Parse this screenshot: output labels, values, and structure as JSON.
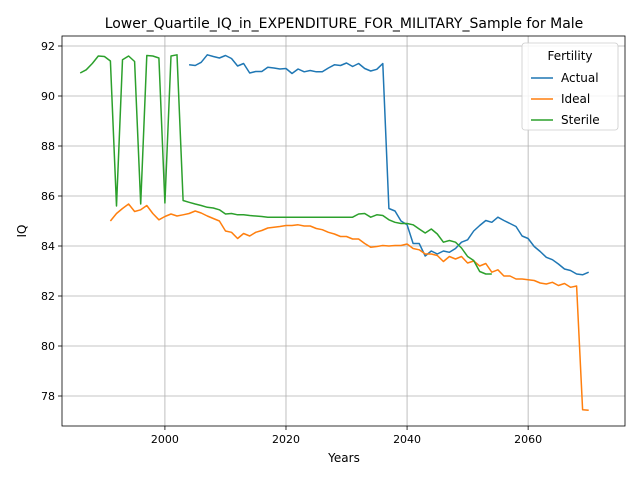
{
  "chart_data": {
    "type": "line",
    "title": "Lower_Quartile_IQ_in_EXPENDITURE_FOR_MILITARY_Sample for Male",
    "xlabel": "Years",
    "ylabel": "IQ",
    "xlim": [
      1983,
      2076
    ],
    "ylim": [
      76.8,
      92.4
    ],
    "xticks": [
      2000,
      2020,
      2040,
      2060
    ],
    "yticks": [
      78,
      80,
      82,
      84,
      86,
      88,
      90,
      92
    ],
    "grid": true,
    "legend": {
      "title": "Fertility",
      "position": "top-right"
    },
    "series": [
      {
        "name": "Actual",
        "color": "#1f77b4",
        "points": [
          [
            2004,
            91.25
          ],
          [
            2005,
            91.22
          ],
          [
            2006,
            91.35
          ],
          [
            2007,
            91.65
          ],
          [
            2008,
            91.58
          ],
          [
            2009,
            91.52
          ],
          [
            2010,
            91.62
          ],
          [
            2011,
            91.5
          ],
          [
            2012,
            91.2
          ],
          [
            2013,
            91.3
          ],
          [
            2014,
            90.92
          ],
          [
            2015,
            90.98
          ],
          [
            2016,
            90.98
          ],
          [
            2017,
            91.15
          ],
          [
            2018,
            91.12
          ],
          [
            2019,
            91.08
          ],
          [
            2020,
            91.1
          ],
          [
            2021,
            90.9
          ],
          [
            2022,
            91.08
          ],
          [
            2023,
            90.97
          ],
          [
            2024,
            91.02
          ],
          [
            2025,
            90.97
          ],
          [
            2026,
            90.97
          ],
          [
            2027,
            91.12
          ],
          [
            2028,
            91.25
          ],
          [
            2029,
            91.22
          ],
          [
            2030,
            91.32
          ],
          [
            2031,
            91.18
          ],
          [
            2032,
            91.3
          ],
          [
            2033,
            91.1
          ],
          [
            2034,
            91.0
          ],
          [
            2035,
            91.07
          ],
          [
            2036,
            91.3
          ],
          [
            2037,
            85.5
          ],
          [
            2038,
            85.4
          ],
          [
            2039,
            85.0
          ],
          [
            2040,
            84.85
          ],
          [
            2041,
            84.1
          ],
          [
            2042,
            84.1
          ],
          [
            2043,
            83.6
          ],
          [
            2044,
            83.8
          ],
          [
            2045,
            83.68
          ],
          [
            2046,
            83.8
          ],
          [
            2047,
            83.75
          ],
          [
            2048,
            83.9
          ],
          [
            2049,
            84.15
          ],
          [
            2050,
            84.25
          ],
          [
            2051,
            84.6
          ],
          [
            2052,
            84.82
          ],
          [
            2053,
            85.02
          ],
          [
            2054,
            84.95
          ],
          [
            2055,
            85.15
          ],
          [
            2056,
            85.02
          ],
          [
            2057,
            84.9
          ],
          [
            2058,
            84.78
          ],
          [
            2059,
            84.4
          ],
          [
            2060,
            84.3
          ],
          [
            2061,
            83.98
          ],
          [
            2062,
            83.78
          ],
          [
            2063,
            83.55
          ],
          [
            2064,
            83.45
          ],
          [
            2065,
            83.28
          ],
          [
            2066,
            83.08
          ],
          [
            2067,
            83.02
          ],
          [
            2068,
            82.88
          ],
          [
            2069,
            82.85
          ],
          [
            2070,
            82.95
          ]
        ]
      },
      {
        "name": "Ideal",
        "color": "#ff7f0e",
        "points": [
          [
            1991,
            85.0
          ],
          [
            1992,
            85.3
          ],
          [
            1993,
            85.5
          ],
          [
            1994,
            85.68
          ],
          [
            1995,
            85.38
          ],
          [
            1996,
            85.45
          ],
          [
            1997,
            85.62
          ],
          [
            1998,
            85.3
          ],
          [
            1999,
            85.05
          ],
          [
            2000,
            85.18
          ],
          [
            2001,
            85.28
          ],
          [
            2002,
            85.2
          ],
          [
            2003,
            85.25
          ],
          [
            2004,
            85.3
          ],
          [
            2005,
            85.4
          ],
          [
            2006,
            85.32
          ],
          [
            2007,
            85.2
          ],
          [
            2008,
            85.1
          ],
          [
            2009,
            85.0
          ],
          [
            2010,
            84.6
          ],
          [
            2011,
            84.55
          ],
          [
            2012,
            84.3
          ],
          [
            2013,
            84.5
          ],
          [
            2014,
            84.4
          ],
          [
            2015,
            84.55
          ],
          [
            2016,
            84.62
          ],
          [
            2017,
            84.72
          ],
          [
            2018,
            84.75
          ],
          [
            2019,
            84.78
          ],
          [
            2020,
            84.82
          ],
          [
            2021,
            84.82
          ],
          [
            2022,
            84.85
          ],
          [
            2023,
            84.8
          ],
          [
            2024,
            84.8
          ],
          [
            2025,
            84.7
          ],
          [
            2026,
            84.65
          ],
          [
            2027,
            84.55
          ],
          [
            2028,
            84.48
          ],
          [
            2029,
            84.38
          ],
          [
            2030,
            84.38
          ],
          [
            2031,
            84.28
          ],
          [
            2032,
            84.28
          ],
          [
            2033,
            84.1
          ],
          [
            2034,
            83.95
          ],
          [
            2035,
            83.98
          ],
          [
            2036,
            84.02
          ],
          [
            2037,
            84.0
          ],
          [
            2038,
            84.02
          ],
          [
            2039,
            84.02
          ],
          [
            2040,
            84.08
          ],
          [
            2041,
            83.9
          ],
          [
            2042,
            83.85
          ],
          [
            2043,
            83.68
          ],
          [
            2044,
            83.68
          ],
          [
            2045,
            83.62
          ],
          [
            2046,
            83.38
          ],
          [
            2047,
            83.58
          ],
          [
            2048,
            83.48
          ],
          [
            2049,
            83.58
          ],
          [
            2050,
            83.32
          ],
          [
            2051,
            83.4
          ],
          [
            2052,
            83.2
          ],
          [
            2053,
            83.3
          ],
          [
            2054,
            82.95
          ],
          [
            2055,
            83.05
          ],
          [
            2056,
            82.8
          ],
          [
            2057,
            82.8
          ],
          [
            2058,
            82.68
          ],
          [
            2059,
            82.68
          ],
          [
            2060,
            82.65
          ],
          [
            2061,
            82.62
          ],
          [
            2062,
            82.52
          ],
          [
            2063,
            82.48
          ],
          [
            2064,
            82.55
          ],
          [
            2065,
            82.42
          ],
          [
            2066,
            82.5
          ],
          [
            2067,
            82.35
          ],
          [
            2068,
            82.4
          ],
          [
            2069,
            77.45
          ],
          [
            2070,
            77.43
          ]
        ]
      },
      {
        "name": "Sterile",
        "color": "#2ca02c",
        "points": [
          [
            1986,
            90.92
          ],
          [
            1987,
            91.05
          ],
          [
            1988,
            91.3
          ],
          [
            1989,
            91.6
          ],
          [
            1990,
            91.58
          ],
          [
            1991,
            91.4
          ],
          [
            1992,
            85.6
          ],
          [
            1993,
            91.45
          ],
          [
            1994,
            91.6
          ],
          [
            1995,
            91.38
          ],
          [
            1996,
            85.68
          ],
          [
            1997,
            91.62
          ],
          [
            1998,
            91.6
          ],
          [
            1999,
            91.52
          ],
          [
            2000,
            85.72
          ],
          [
            2001,
            91.6
          ],
          [
            2002,
            91.65
          ],
          [
            2003,
            85.82
          ],
          [
            2004,
            85.75
          ],
          [
            2005,
            85.68
          ],
          [
            2006,
            85.62
          ],
          [
            2007,
            85.55
          ],
          [
            2008,
            85.52
          ],
          [
            2009,
            85.45
          ],
          [
            2010,
            85.28
          ],
          [
            2011,
            85.3
          ],
          [
            2012,
            85.25
          ],
          [
            2013,
            85.25
          ],
          [
            2014,
            85.22
          ],
          [
            2015,
            85.2
          ],
          [
            2016,
            85.18
          ],
          [
            2017,
            85.15
          ],
          [
            2018,
            85.15
          ],
          [
            2019,
            85.15
          ],
          [
            2020,
            85.15
          ],
          [
            2021,
            85.15
          ],
          [
            2022,
            85.15
          ],
          [
            2023,
            85.15
          ],
          [
            2024,
            85.15
          ],
          [
            2025,
            85.15
          ],
          [
            2026,
            85.15
          ],
          [
            2027,
            85.15
          ],
          [
            2028,
            85.15
          ],
          [
            2029,
            85.15
          ],
          [
            2030,
            85.15
          ],
          [
            2031,
            85.15
          ],
          [
            2032,
            85.28
          ],
          [
            2033,
            85.3
          ],
          [
            2034,
            85.15
          ],
          [
            2035,
            85.25
          ],
          [
            2036,
            85.22
          ],
          [
            2037,
            85.05
          ],
          [
            2038,
            84.95
          ],
          [
            2039,
            84.9
          ],
          [
            2040,
            84.9
          ],
          [
            2041,
            84.85
          ],
          [
            2042,
            84.68
          ],
          [
            2043,
            84.52
          ],
          [
            2044,
            84.68
          ],
          [
            2045,
            84.48
          ],
          [
            2046,
            84.15
          ],
          [
            2047,
            84.22
          ],
          [
            2048,
            84.15
          ],
          [
            2049,
            83.92
          ],
          [
            2050,
            83.58
          ],
          [
            2051,
            83.42
          ],
          [
            2052,
            82.98
          ],
          [
            2053,
            82.88
          ],
          [
            2054,
            82.88
          ]
        ]
      }
    ]
  }
}
